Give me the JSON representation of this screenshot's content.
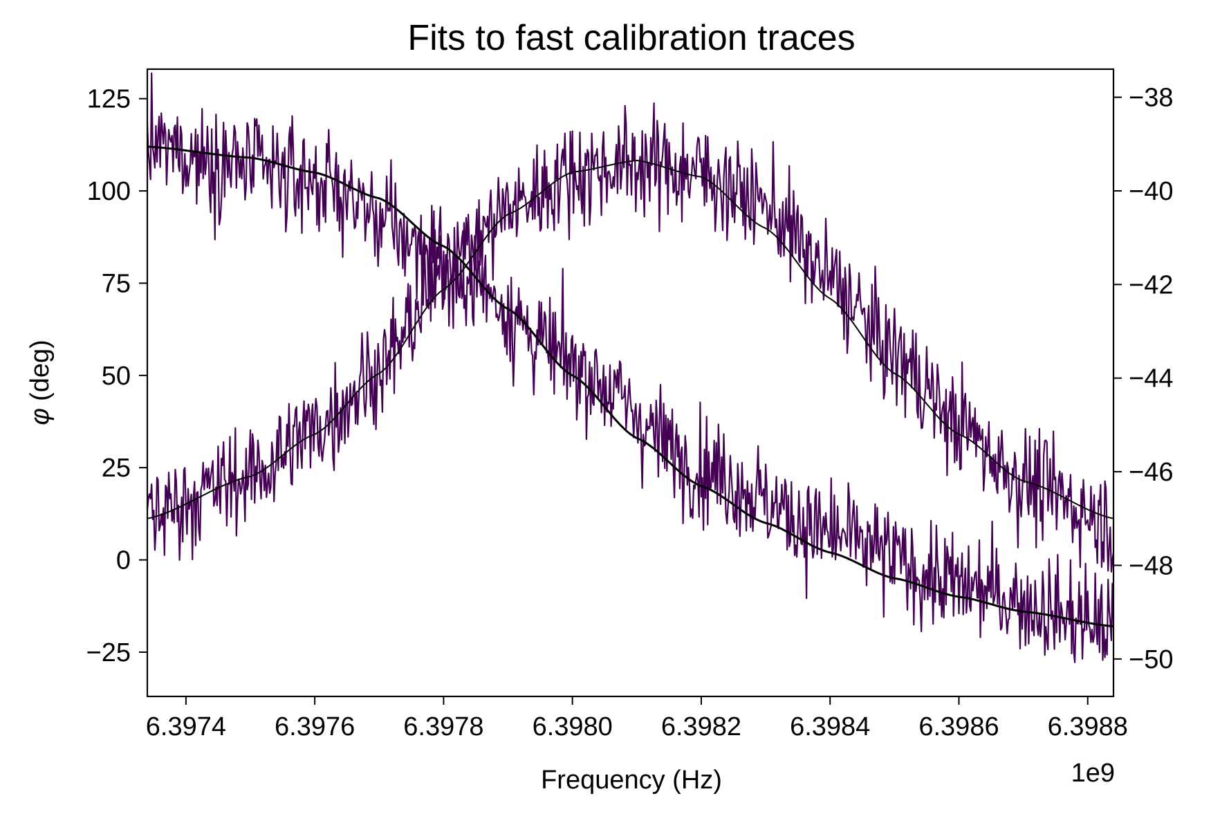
{
  "chart_data": {
    "type": "line",
    "title": "Fits to fast calibration traces",
    "xlabel": "Frequency (Hz)",
    "ylabel": "φ (deg)",
    "ylabel_symbol": "φ",
    "ylabel_unit": "(deg)",
    "x_offset_label": "1e9",
    "x_scale": 1000000000,
    "xlim": [
      6397340000,
      6398840000
    ],
    "ylim_left": [
      -37,
      133
    ],
    "ylim_right": [
      -50.8,
      -37.4
    ],
    "x_ticks": [
      6397400000,
      6397600000,
      6397800000,
      6398000000,
      6398200000,
      6398400000,
      6398600000,
      6398800000
    ],
    "x_tick_labels": [
      "6.3974",
      "6.3976",
      "6.3978",
      "6.3980",
      "6.3982",
      "6.3984",
      "6.3986",
      "6.3988"
    ],
    "y_left_ticks": [
      -25,
      0,
      25,
      50,
      75,
      100,
      125
    ],
    "y_left_tick_labels": [
      "−25",
      "0",
      "25",
      "50",
      "75",
      "100",
      "125"
    ],
    "y_right_ticks": [
      -50,
      -48,
      -46,
      -44,
      -42,
      -40,
      -38
    ],
    "y_right_tick_labels": [
      "−50",
      "−48",
      "−46",
      "−44",
      "−42",
      "−40",
      "−38"
    ],
    "grid": false,
    "colors": {
      "data": "#440154",
      "fit": "#000000"
    },
    "series": [
      {
        "role": "phase-data",
        "axis": "left",
        "color": "#440154",
        "noise_sigma": 7,
        "x_knots": [
          6397340000,
          6397600000,
          6397800000,
          6398000000,
          6398200000,
          6398400000,
          6398600000,
          6398840000
        ],
        "y_knots": [
          112,
          103,
          82,
          53,
          25,
          7,
          -7,
          -18
        ]
      },
      {
        "role": "phase-fit",
        "axis": "left",
        "color": "#000000",
        "x_knots": [
          6397340000,
          6397500000,
          6397600000,
          6397700000,
          6397800000,
          6397900000,
          6398000000,
          6398100000,
          6398200000,
          6398300000,
          6398400000,
          6398500000,
          6398600000,
          6398700000,
          6398840000
        ],
        "y_knots": [
          112,
          109,
          105,
          98,
          85,
          68,
          50,
          33,
          20,
          10,
          2,
          -5,
          -10,
          -14,
          -18
        ]
      },
      {
        "role": "magnitude-data",
        "axis": "right",
        "color": "#440154",
        "noise_sigma": 0.55,
        "x_knots": [
          6397340000,
          6397500000,
          6397600000,
          6397700000,
          6397800000,
          6397900000,
          6398000000,
          6398100000,
          6398200000,
          6398300000,
          6398400000,
          6398500000,
          6398600000,
          6398700000,
          6398840000
        ],
        "y_knots": [
          -46.9,
          -46.1,
          -45.1,
          -43.8,
          -41.8,
          -40.4,
          -39.6,
          -39.4,
          -39.6,
          -40.3,
          -41.9,
          -43.5,
          -45.0,
          -46.2,
          -47.1
        ]
      },
      {
        "role": "magnitude-fit",
        "axis": "right",
        "color": "#000000",
        "x_knots": [
          6397340000,
          6397500000,
          6397600000,
          6397700000,
          6397800000,
          6397900000,
          6398000000,
          6398100000,
          6398200000,
          6398300000,
          6398400000,
          6398500000,
          6398600000,
          6398700000,
          6398840000
        ],
        "y_knots": [
          -47.0,
          -46.1,
          -45.2,
          -43.9,
          -42.1,
          -40.5,
          -39.6,
          -39.35,
          -39.7,
          -40.8,
          -42.3,
          -43.9,
          -45.2,
          -46.2,
          -47.0
        ]
      }
    ]
  }
}
